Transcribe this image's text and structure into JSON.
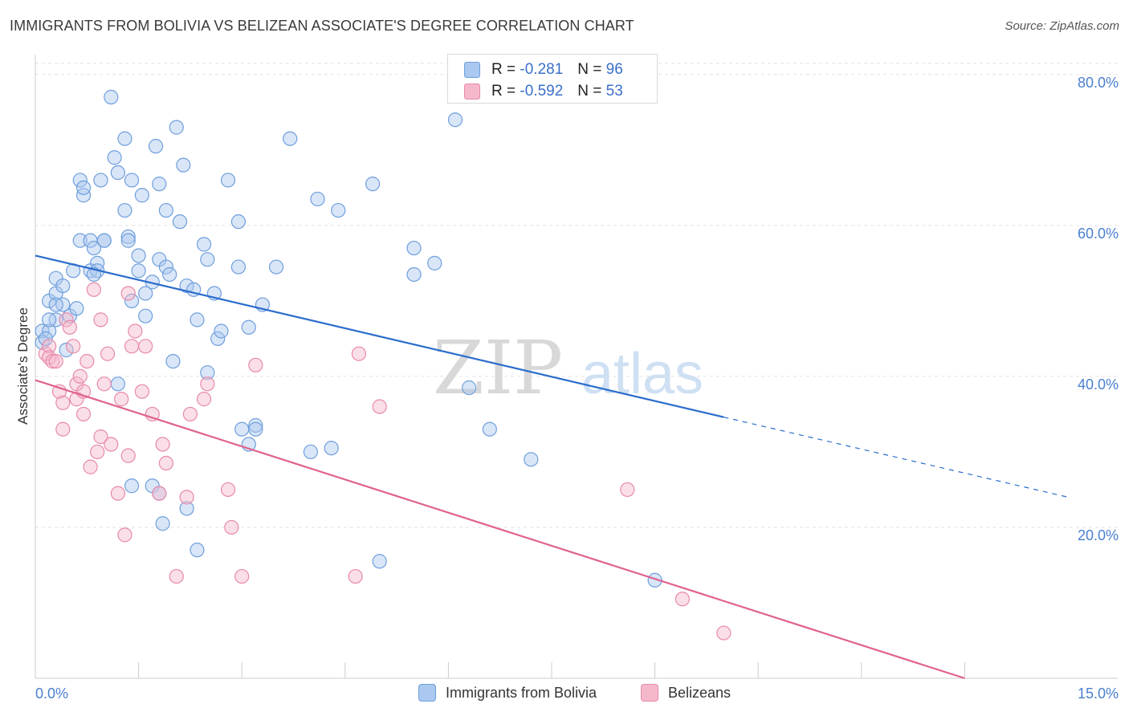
{
  "title": "IMMIGRANTS FROM BOLIVIA VS BELIZEAN ASSOCIATE'S DEGREE CORRELATION CHART",
  "source": "Source: ZipAtlas.com",
  "watermark": {
    "zip": "ZIP",
    "atlas": "atlas"
  },
  "colors": {
    "blue_fill": "#aac8f0",
    "blue_stroke": "#6f9fdc",
    "blue_line": "#2a6ccc",
    "pink_fill": "#f5b8cb",
    "pink_stroke": "#e88aa8",
    "pink_line": "#e0628e",
    "tick_label": "#4a7fcf",
    "grid": "#e2e2e2"
  },
  "legend_top": [
    {
      "r_label": "R =",
      "r_value": "-0.281",
      "n_label": "N =",
      "n_value": "96"
    },
    {
      "r_label": "R =",
      "r_value": "-0.592",
      "n_label": "N =",
      "n_value": "53"
    }
  ],
  "chart_data": {
    "type": "scatter",
    "title": "IMMIGRANTS FROM BOLIVIA VS BELIZEAN ASSOCIATE'S DEGREE CORRELATION CHART",
    "xlabel": "",
    "ylabel": "Associate's Degree",
    "xlim": [
      0,
      15
    ],
    "ylim": [
      0,
      82
    ],
    "x_tick_labels": [
      {
        "value": 0,
        "label": "0.0%"
      },
      {
        "value": 15,
        "label": "15.0%"
      }
    ],
    "x_minor_ticks": [
      1.5,
      3,
      4.5,
      6,
      7.5,
      9,
      10.5,
      12,
      13.5
    ],
    "y_ticks": [
      {
        "value": 20,
        "label": "20.0%"
      },
      {
        "value": 40,
        "label": "40.0%"
      },
      {
        "value": 60,
        "label": "60.0%"
      },
      {
        "value": 80,
        "label": "80.0%"
      }
    ],
    "grid": true,
    "legend": "bottom",
    "series": [
      {
        "name": "Immigrants from Bolivia",
        "color": "blue",
        "r": -0.281,
        "n": 96,
        "trend": {
          "x0": 0,
          "y0": 56.0,
          "x1": 10.0,
          "y1": 34.6,
          "dash_to_x": 15,
          "dash_to_y": 24.0
        },
        "points": [
          [
            1.1,
            77
          ],
          [
            0.1,
            46
          ],
          [
            0.1,
            44.5
          ],
          [
            0.2,
            46
          ],
          [
            0.15,
            45
          ],
          [
            0.3,
            47.5
          ],
          [
            0.2,
            47.5
          ],
          [
            0.2,
            50
          ],
          [
            0.3,
            51
          ],
          [
            0.3,
            53
          ],
          [
            0.4,
            52
          ],
          [
            0.4,
            49.5
          ],
          [
            0.3,
            49.5
          ],
          [
            0.5,
            48
          ],
          [
            0.6,
            49
          ],
          [
            0.45,
            43.5
          ],
          [
            0.55,
            54
          ],
          [
            0.65,
            58
          ],
          [
            0.8,
            58
          ],
          [
            0.85,
            57
          ],
          [
            0.9,
            55
          ],
          [
            0.8,
            54
          ],
          [
            0.9,
            54
          ],
          [
            0.85,
            53.5
          ],
          [
            1.0,
            58
          ],
          [
            1.0,
            58
          ],
          [
            0.65,
            66
          ],
          [
            0.7,
            64
          ],
          [
            0.7,
            65
          ],
          [
            0.95,
            66
          ],
          [
            1.15,
            69
          ],
          [
            1.2,
            67
          ],
          [
            1.3,
            71.5
          ],
          [
            1.3,
            62
          ],
          [
            1.35,
            58.5
          ],
          [
            1.35,
            58
          ],
          [
            1.4,
            66
          ],
          [
            1.5,
            54
          ],
          [
            1.5,
            56
          ],
          [
            1.55,
            64
          ],
          [
            1.4,
            50
          ],
          [
            1.6,
            51
          ],
          [
            1.6,
            48
          ],
          [
            1.7,
            52.5
          ],
          [
            1.75,
            70.5
          ],
          [
            1.8,
            65.5
          ],
          [
            1.8,
            55.5
          ],
          [
            1.9,
            54.5
          ],
          [
            1.9,
            62
          ],
          [
            1.95,
            53.5
          ],
          [
            2.05,
            73
          ],
          [
            2.1,
            60.5
          ],
          [
            2.15,
            68
          ],
          [
            2.2,
            52
          ],
          [
            2.3,
            51.5
          ],
          [
            2.35,
            47.5
          ],
          [
            2.45,
            57.5
          ],
          [
            2.5,
            55.5
          ],
          [
            2.6,
            51
          ],
          [
            2.65,
            45
          ],
          [
            2.7,
            46
          ],
          [
            2.8,
            66
          ],
          [
            2.95,
            60.5
          ],
          [
            2.95,
            54.5
          ],
          [
            3.1,
            46.5
          ],
          [
            3.3,
            49.5
          ],
          [
            3.5,
            54.5
          ],
          [
            3.7,
            71.5
          ],
          [
            4.1,
            63.5
          ],
          [
            4.4,
            62
          ],
          [
            4.9,
            65.5
          ],
          [
            5.5,
            57
          ],
          [
            5.5,
            53.5
          ],
          [
            5.8,
            55
          ],
          [
            6.1,
            74
          ],
          [
            6.3,
            38.5
          ],
          [
            6.6,
            33
          ],
          [
            7.2,
            29
          ],
          [
            9.0,
            13
          ],
          [
            2.0,
            42
          ],
          [
            2.5,
            40.5
          ],
          [
            3.0,
            33
          ],
          [
            3.2,
            33.5
          ],
          [
            3.2,
            33
          ],
          [
            3.1,
            31
          ],
          [
            4.0,
            30
          ],
          [
            4.3,
            30.5
          ],
          [
            5.0,
            15.5
          ],
          [
            1.2,
            39
          ],
          [
            1.4,
            25.5
          ],
          [
            1.7,
            25.5
          ],
          [
            1.8,
            24.5
          ],
          [
            1.85,
            20.5
          ],
          [
            2.2,
            22.5
          ],
          [
            2.35,
            17
          ]
        ]
      },
      {
        "name": "Belizeans",
        "color": "pink",
        "r": -0.592,
        "n": 53,
        "trend": {
          "x0": 0,
          "y0": 39.5,
          "x1": 13.5,
          "y1": 0
        },
        "points": [
          [
            0.15,
            43
          ],
          [
            0.2,
            44
          ],
          [
            0.2,
            42.5
          ],
          [
            0.25,
            42
          ],
          [
            0.3,
            42
          ],
          [
            0.35,
            38
          ],
          [
            0.4,
            36.5
          ],
          [
            0.45,
            47.5
          ],
          [
            0.5,
            46.5
          ],
          [
            0.55,
            44
          ],
          [
            0.6,
            39
          ],
          [
            0.6,
            37
          ],
          [
            0.65,
            40
          ],
          [
            0.7,
            38
          ],
          [
            0.7,
            35
          ],
          [
            0.4,
            33
          ],
          [
            0.75,
            42
          ],
          [
            0.8,
            28
          ],
          [
            0.85,
            51.5
          ],
          [
            0.9,
            30
          ],
          [
            0.95,
            32
          ],
          [
            0.95,
            47.5
          ],
          [
            1.0,
            39
          ],
          [
            1.05,
            43
          ],
          [
            1.1,
            31
          ],
          [
            1.2,
            24.5
          ],
          [
            1.25,
            37
          ],
          [
            1.3,
            19
          ],
          [
            1.35,
            29.5
          ],
          [
            1.35,
            51
          ],
          [
            1.4,
            44
          ],
          [
            1.45,
            46
          ],
          [
            1.55,
            38
          ],
          [
            1.6,
            44
          ],
          [
            1.7,
            35
          ],
          [
            1.8,
            24.5
          ],
          [
            1.85,
            31
          ],
          [
            1.9,
            28.5
          ],
          [
            2.05,
            13.5
          ],
          [
            2.2,
            24
          ],
          [
            2.25,
            35
          ],
          [
            2.45,
            37
          ],
          [
            2.5,
            39
          ],
          [
            2.8,
            25
          ],
          [
            2.85,
            20
          ],
          [
            3.0,
            13.5
          ],
          [
            3.2,
            41.5
          ],
          [
            4.65,
            13.5
          ],
          [
            4.7,
            43
          ],
          [
            5.0,
            36
          ],
          [
            8.6,
            25
          ],
          [
            9.4,
            10.5
          ],
          [
            10.0,
            6
          ]
        ]
      }
    ]
  }
}
